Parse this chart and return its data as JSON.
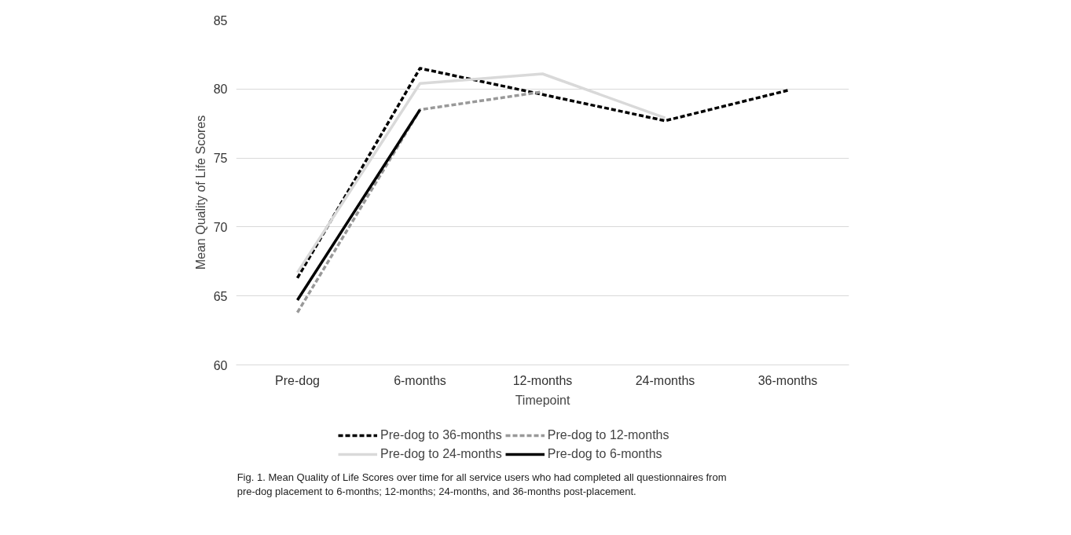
{
  "chart_data": {
    "type": "line",
    "xlabel": "Timepoint",
    "ylabel": "Mean Quality of Life Scores",
    "categories": [
      "Pre-dog",
      "6-months",
      "12-months",
      "24-months",
      "36-months"
    ],
    "ylim": [
      60,
      85
    ],
    "yticks": [
      60,
      65,
      70,
      75,
      80,
      85
    ],
    "grid": "y",
    "legend": "bottom",
    "series": [
      {
        "name": "Pre-dog to 36-months",
        "color": "#000000",
        "line_style": "dashed",
        "values": [
          66.3,
          81.5,
          79.6,
          77.7,
          79.9
        ]
      },
      {
        "name": "Pre-dog to 24-months",
        "color": "#d9d9d9",
        "line_style": "solid",
        "values": [
          66.7,
          80.4,
          81.1,
          77.9,
          null
        ]
      },
      {
        "name": "Pre-dog to 12-months",
        "color": "#999999",
        "line_style": "dashed",
        "values": [
          63.8,
          78.5,
          79.8,
          null,
          null
        ]
      },
      {
        "name": "Pre-dog to 6-months",
        "color": "#000000",
        "line_style": "solid",
        "values": [
          64.7,
          78.5,
          null,
          null,
          null
        ]
      }
    ],
    "annotations": [
      "Fig. 1.  Mean Quality of Life Scores over time for all service users who had completed all questionnaires from pre-dog placement to 6-months; 12-months; 24-months, and 36-months post-placement."
    ]
  }
}
